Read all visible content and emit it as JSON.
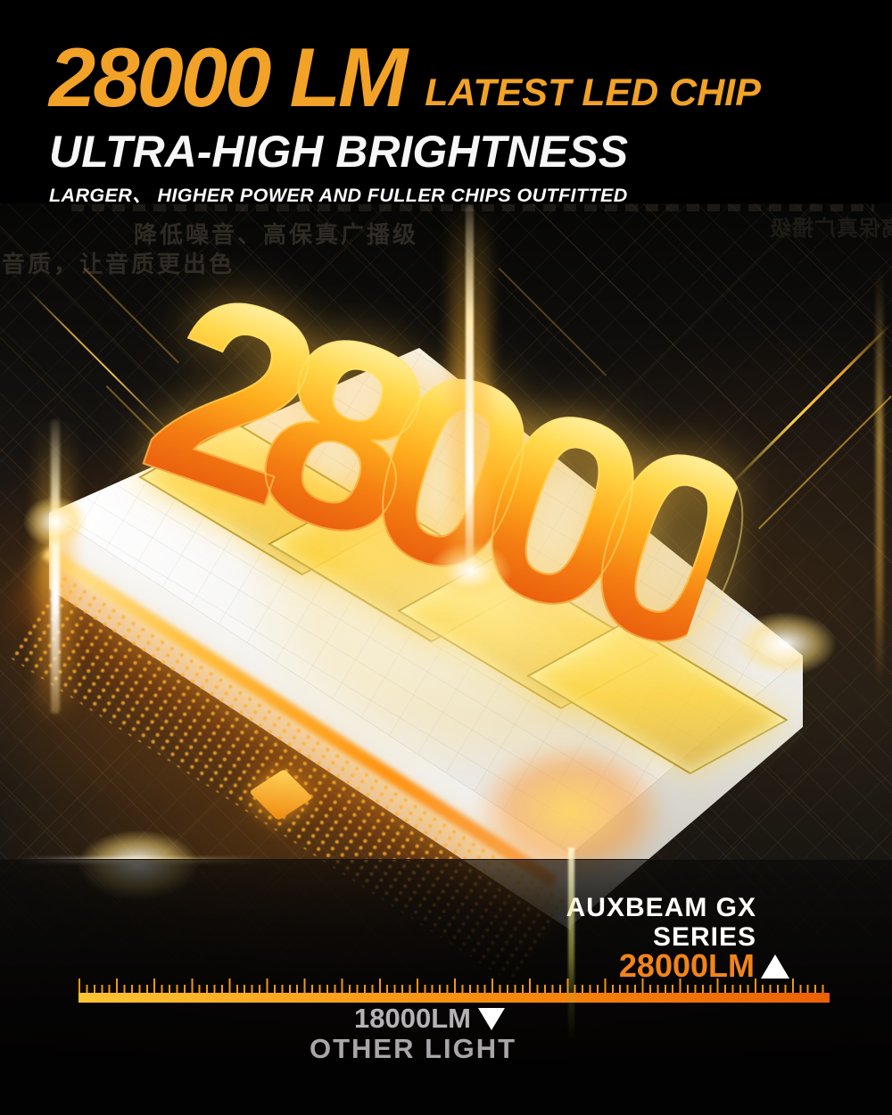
{
  "meta": {
    "type": "product-advertisement",
    "brand_series": "AUXBEAM GX SERIES"
  },
  "header": {
    "headline_value": "28000 LM",
    "headline_suffix": "LATEST LED CHIP",
    "subheadline": "ULTRA-HIGH BRIGHTNESS",
    "tagline": "LARGER、 HIGHER POWER AND FULLER CHIPS OUTFITTED",
    "accent_color": "#F1A227",
    "text_color": "#F7F7F7"
  },
  "scene": {
    "big_number": "28000",
    "number_gradient": [
      "#FFF3B0",
      "#FFD84A",
      "#FFAF1E",
      "#F47D12",
      "#E85A0D"
    ],
    "watermark_line1": "降低噪音、高保真广播级",
    "watermark_line2": "音质，让音质更出色",
    "watermark_mirrored": "高保真广播级"
  },
  "comparison": {
    "type": "scale",
    "unit": "LM",
    "items": [
      {
        "name": "AUXBEAM GX SERIES",
        "value": 28000,
        "label": "28000LM",
        "color": "#F28418",
        "marker": "up-triangle"
      },
      {
        "name": "OTHER LIGHT",
        "value": 18000,
        "label": "18000LM",
        "color": "#B5B3B5",
        "marker": "down-triangle"
      }
    ],
    "product_line1": "AUXBEAM GX",
    "product_line2": "SERIES",
    "product_value": "28000LM",
    "competitor_value": "18000LM",
    "competitor_label": "OTHER LIGHT",
    "ruler_color_left": "#FFC433",
    "ruler_color_right": "#EB6102"
  }
}
